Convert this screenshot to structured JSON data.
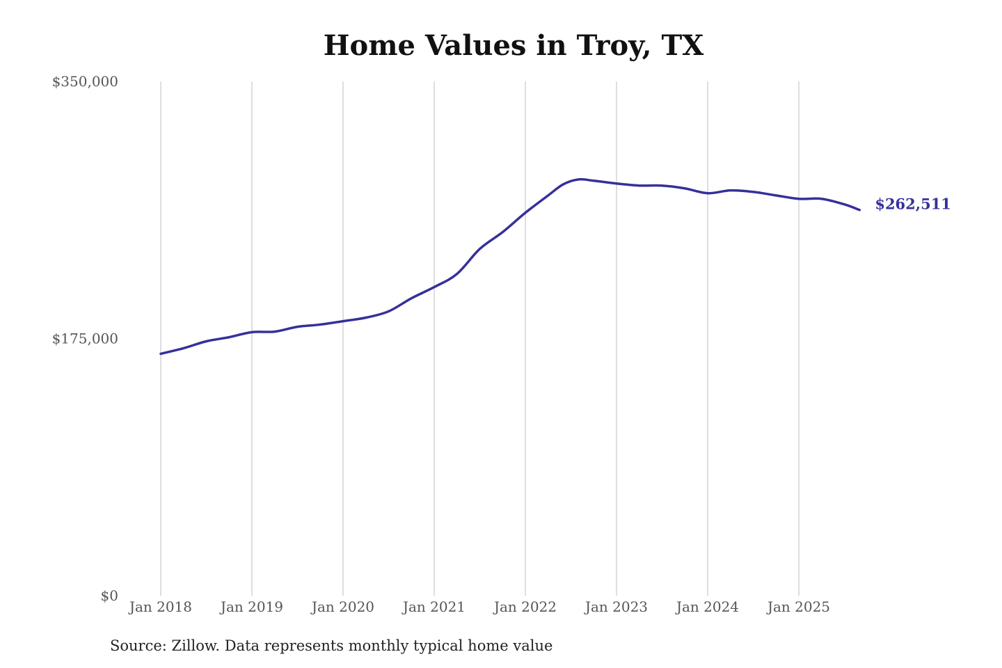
{
  "chart_data": {
    "type": "line",
    "title": "Home Values in Troy, TX",
    "source": "Source: Zillow. Data represents monthly typical home value",
    "xlabel": "",
    "ylabel": "",
    "ylim": [
      0,
      350000
    ],
    "yticks": [
      0,
      175000,
      350000
    ],
    "ytick_labels": [
      "$0",
      "$175,000",
      "$350,000"
    ],
    "xticks": [
      "2018-01",
      "2019-01",
      "2020-01",
      "2021-01",
      "2022-01",
      "2023-01",
      "2024-01",
      "2025-01"
    ],
    "xtick_labels": [
      "Jan 2018",
      "Jan 2019",
      "Jan 2020",
      "Jan 2021",
      "Jan 2022",
      "Jan 2023",
      "Jan 2024",
      "Jan 2025"
    ],
    "grid": "vertical",
    "line_color": "#36309a",
    "end_label": "$262,511",
    "points": [
      {
        "date": "2018-01",
        "value": 164600
      },
      {
        "date": "2018-04",
        "value": 168400
      },
      {
        "date": "2018-07",
        "value": 173100
      },
      {
        "date": "2018-10",
        "value": 175900
      },
      {
        "date": "2019-01",
        "value": 179300
      },
      {
        "date": "2019-04",
        "value": 179700
      },
      {
        "date": "2019-07",
        "value": 183000
      },
      {
        "date": "2019-10",
        "value": 184500
      },
      {
        "date": "2020-01",
        "value": 186800
      },
      {
        "date": "2020-04",
        "value": 189200
      },
      {
        "date": "2020-07",
        "value": 193500
      },
      {
        "date": "2020-10",
        "value": 202400
      },
      {
        "date": "2021-01",
        "value": 210000
      },
      {
        "date": "2021-04",
        "value": 219000
      },
      {
        "date": "2021-07",
        "value": 236000
      },
      {
        "date": "2021-10",
        "value": 247400
      },
      {
        "date": "2022-01",
        "value": 260600
      },
      {
        "date": "2022-04",
        "value": 272400
      },
      {
        "date": "2022-06",
        "value": 280000
      },
      {
        "date": "2022-08",
        "value": 283300
      },
      {
        "date": "2022-10",
        "value": 282400
      },
      {
        "date": "2023-01",
        "value": 280500
      },
      {
        "date": "2023-04",
        "value": 279100
      },
      {
        "date": "2023-07",
        "value": 279100
      },
      {
        "date": "2023-10",
        "value": 277200
      },
      {
        "date": "2024-01",
        "value": 273900
      },
      {
        "date": "2024-04",
        "value": 275800
      },
      {
        "date": "2024-07",
        "value": 274800
      },
      {
        "date": "2024-10",
        "value": 272400
      },
      {
        "date": "2025-01",
        "value": 270100
      },
      {
        "date": "2025-04",
        "value": 270100
      },
      {
        "date": "2025-07",
        "value": 266300
      },
      {
        "date": "2025-09",
        "value": 262511
      }
    ]
  }
}
